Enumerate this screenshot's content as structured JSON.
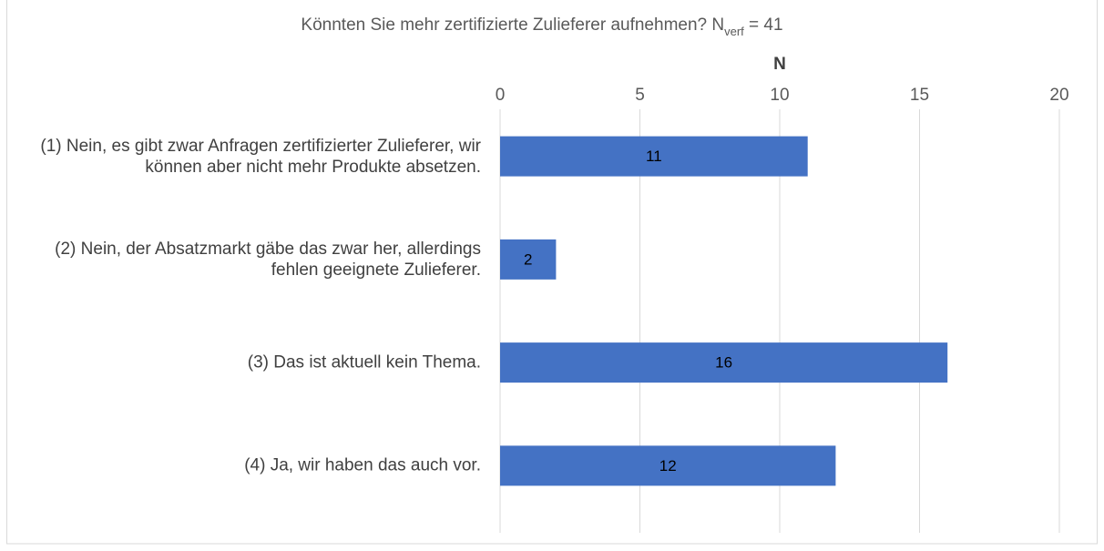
{
  "chart_data": {
    "type": "bar",
    "orientation": "horizontal",
    "title": "Könnten Sie mehr zertifizierte Zulieferer aufnehmen? N",
    "title_subscript": "verf",
    "title_suffix": " = 41",
    "x_label": "N",
    "categories": [
      "(1) Nein, es gibt zwar Anfragen zertifizierter Zulieferer, wir können aber nicht mehr Produkte absetzen.",
      "(2) Nein, der Absatzmarkt gäbe das zwar her, allerdings fehlen geeignete Zulieferer.",
      "(3) Das ist aktuell kein Thema.",
      "(4) Ja, wir haben das auch vor."
    ],
    "values": [
      11,
      2,
      16,
      12
    ],
    "color": "#4472c4",
    "xlim": [
      0,
      20
    ],
    "xticks": [
      0,
      5,
      10,
      15,
      20
    ],
    "grid": true
  }
}
